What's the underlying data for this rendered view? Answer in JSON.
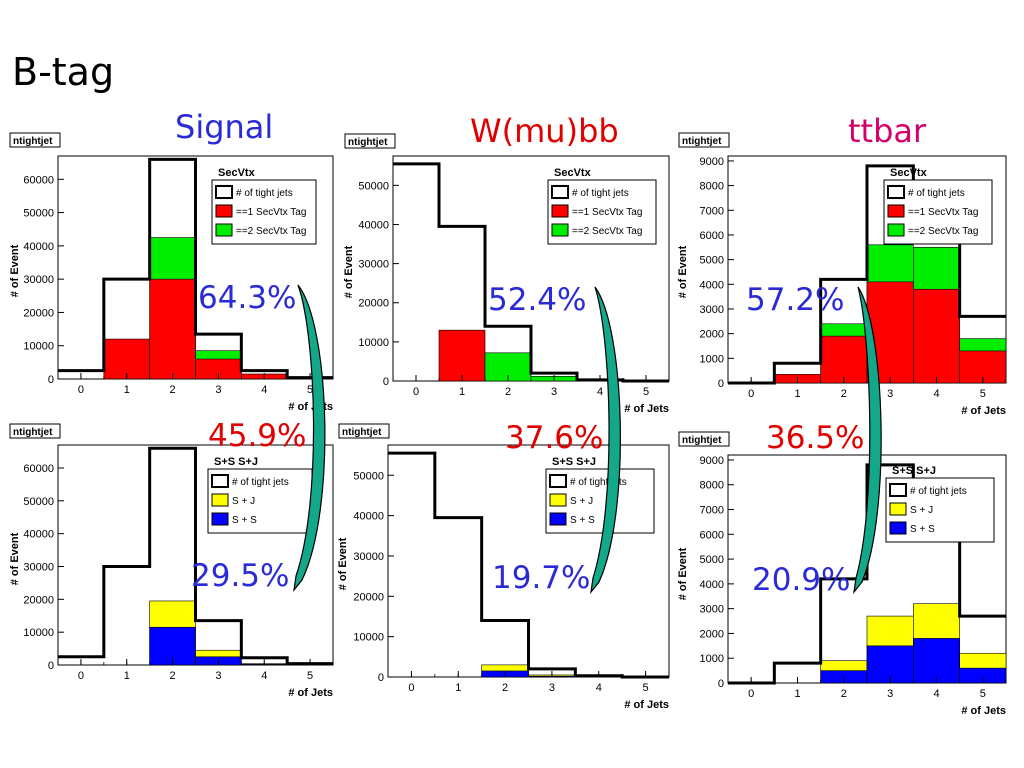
{
  "slide": {
    "title": "B-tag",
    "columns": [
      {
        "name": "Signal",
        "color": "#2a2ad6"
      },
      {
        "name": "W(mu)bb",
        "color": "#e00000"
      },
      {
        "name": "ttbar",
        "color": "#d4006a"
      }
    ],
    "percentages": {
      "signal_tag": "64.3%",
      "signal_ratio": "45.9%",
      "signal_ss": "29.5%",
      "wbb_tag": "52.4%",
      "wbb_ratio": "37.6%",
      "wbb_ss": "19.7%",
      "ttbar_tag": "57.2%",
      "ttbar_ratio": "36.5%",
      "ttbar_ss": "20.9%"
    },
    "colors": {
      "red": "#ff0000",
      "green": "#00ee00",
      "yellow": "#ffff00",
      "blue": "#0000ff",
      "arrow": "#13a88a",
      "blue_text": "#2a2ad6",
      "red_text": "#e00000"
    }
  },
  "chart_data": [
    {
      "id": "signal_secvtx",
      "type": "bar",
      "hist_name": "ntightjet",
      "legend_title": "SecVtx",
      "xlabel": "# of Jets",
      "ylabel": "# of Event",
      "xlim": [
        -0.5,
        5.5
      ],
      "ylim": [
        0,
        67000
      ],
      "yticks": [
        0,
        10000,
        20000,
        30000,
        40000,
        50000,
        60000
      ],
      "xticks": [
        0,
        1,
        2,
        3,
        4,
        5
      ],
      "categories": [
        0,
        1,
        2,
        3,
        4,
        5
      ],
      "series": [
        {
          "name": "# of tight jets",
          "color": "#ffffff",
          "values": [
            2500,
            30000,
            66000,
            13500,
            2500,
            400
          ]
        },
        {
          "name": "==1 SecVtx Tag",
          "color": "#ff0000",
          "values": [
            0,
            12000,
            30000,
            6000,
            1500,
            200
          ]
        },
        {
          "name": "==2 SecVtx Tag",
          "color": "#00ee00",
          "values": [
            0,
            0,
            42500,
            8500,
            500,
            0
          ]
        }
      ]
    },
    {
      "id": "wbb_secvtx",
      "type": "bar",
      "hist_name": "ntightjet",
      "legend_title": "SecVtx",
      "xlabel": "# of Jets",
      "ylabel": "# of Event",
      "xlim": [
        -0.5,
        5.5
      ],
      "ylim": [
        0,
        57500
      ],
      "yticks": [
        0,
        10000,
        20000,
        30000,
        40000,
        50000
      ],
      "xticks": [
        0,
        1,
        2,
        3,
        4,
        5
      ],
      "categories": [
        0,
        1,
        2,
        3,
        4,
        5
      ],
      "series": [
        {
          "name": "# of tight jets",
          "color": "#ffffff",
          "values": [
            55500,
            39500,
            14000,
            2000,
            300,
            0
          ]
        },
        {
          "name": "==1 SecVtx Tag",
          "color": "#ff0000",
          "values": [
            0,
            13000,
            6000,
            800,
            100,
            0
          ]
        },
        {
          "name": "==2 SecVtx Tag",
          "color": "#00ee00",
          "values": [
            0,
            0,
            7200,
            1200,
            0,
            0
          ]
        }
      ]
    },
    {
      "id": "ttbar_secvtx",
      "type": "bar",
      "hist_name": "ntightjet",
      "legend_title": "SecVtx",
      "xlabel": "# of Jets",
      "ylabel": "# of Event",
      "xlim": [
        -0.5,
        5.5
      ],
      "ylim": [
        0,
        9200
      ],
      "yticks": [
        0,
        1000,
        2000,
        3000,
        4000,
        5000,
        6000,
        7000,
        8000,
        9000
      ],
      "xticks": [
        0,
        1,
        2,
        3,
        4,
        5
      ],
      "categories": [
        0,
        1,
        2,
        3,
        4,
        5
      ],
      "series": [
        {
          "name": "# of tight jets",
          "color": "#ffffff",
          "values": [
            0,
            800,
            4200,
            8800,
            8100,
            2700
          ]
        },
        {
          "name": "==1 SecVtx Tag",
          "color": "#ff0000",
          "values": [
            0,
            350,
            1900,
            4100,
            3800,
            1300
          ]
        },
        {
          "name": "==2 SecVtx Tag",
          "color": "#00ee00",
          "values": [
            0,
            0,
            2400,
            5600,
            5500,
            1800
          ]
        }
      ]
    },
    {
      "id": "signal_ssj",
      "type": "bar",
      "hist_name": "ntightjet",
      "legend_title": "S+S S+J",
      "xlabel": "# of Jets",
      "ylabel": "# of Event",
      "xlim": [
        -0.5,
        5.5
      ],
      "ylim": [
        0,
        67000
      ],
      "yticks": [
        0,
        10000,
        20000,
        30000,
        40000,
        50000,
        60000
      ],
      "xticks": [
        0,
        1,
        2,
        3,
        4,
        5
      ],
      "categories": [
        0,
        1,
        2,
        3,
        4,
        5
      ],
      "series": [
        {
          "name": "# of tight jets",
          "color": "#ffffff",
          "values": [
            2500,
            30000,
            66000,
            13500,
            2200,
            400
          ]
        },
        {
          "name": "S + J",
          "color": "#ffff00",
          "values": [
            0,
            0,
            19500,
            4500,
            400,
            0
          ]
        },
        {
          "name": "S + S",
          "color": "#0000ff",
          "values": [
            0,
            0,
            11500,
            2500,
            200,
            0
          ]
        }
      ]
    },
    {
      "id": "wbb_ssj",
      "type": "bar",
      "hist_name": "ntightjet",
      "legend_title": "S+S S+J",
      "xlabel": "# of Jets",
      "ylabel": "# of Event",
      "xlim": [
        -0.5,
        5.5
      ],
      "ylim": [
        0,
        57500
      ],
      "yticks": [
        0,
        10000,
        20000,
        30000,
        40000,
        50000
      ],
      "xticks": [
        0,
        1,
        2,
        3,
        4,
        5
      ],
      "categories": [
        0,
        1,
        2,
        3,
        4,
        5
      ],
      "series": [
        {
          "name": "# of tight jets",
          "color": "#ffffff",
          "values": [
            55500,
            39500,
            14000,
            2000,
            300,
            0
          ]
        },
        {
          "name": "S + J",
          "color": "#ffff00",
          "values": [
            0,
            0,
            3000,
            500,
            0,
            0
          ]
        },
        {
          "name": "S + S",
          "color": "#0000ff",
          "values": [
            0,
            0,
            1500,
            200,
            0,
            0
          ]
        }
      ]
    },
    {
      "id": "ttbar_ssj",
      "type": "bar",
      "hist_name": "ntightjet",
      "legend_title": "S+S S+J",
      "xlabel": "# of Jets",
      "ylabel": "# of Event",
      "xlim": [
        -0.5,
        5.5
      ],
      "ylim": [
        0,
        9200
      ],
      "yticks": [
        0,
        1000,
        2000,
        3000,
        4000,
        5000,
        6000,
        7000,
        8000,
        9000
      ],
      "xticks": [
        0,
        1,
        2,
        3,
        4,
        5
      ],
      "categories": [
        0,
        1,
        2,
        3,
        4,
        5
      ],
      "series": [
        {
          "name": "# of tight jets",
          "color": "#ffffff",
          "values": [
            0,
            800,
            4200,
            8800,
            8100,
            2700
          ]
        },
        {
          "name": "S + J",
          "color": "#ffff00",
          "values": [
            0,
            0,
            900,
            2700,
            3200,
            1200
          ]
        },
        {
          "name": "S + S",
          "color": "#0000ff",
          "values": [
            0,
            0,
            500,
            1500,
            1800,
            600
          ]
        }
      ]
    }
  ]
}
